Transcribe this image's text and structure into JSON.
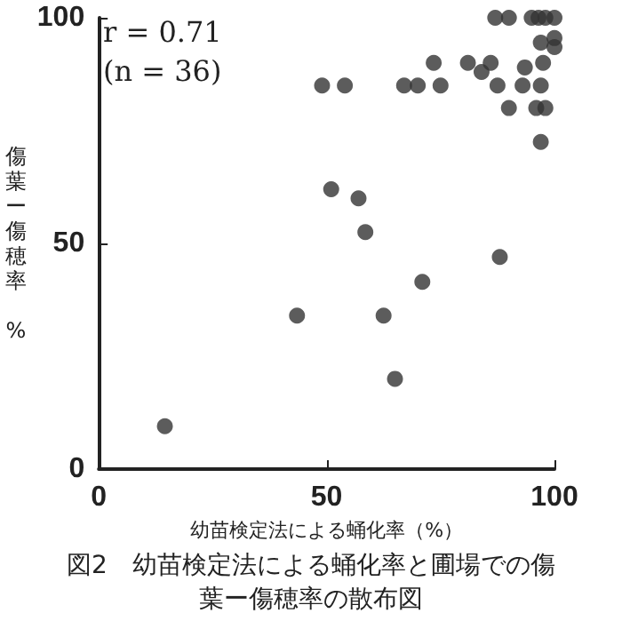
{
  "chart_data": {
    "type": "scatter",
    "title": "図2　幼苗検定法による蛹化率と圃場での傷葉ー傷穂率の散布図",
    "xlabel": "幼苗検定法による蛹化率（%）",
    "ylabel": "傷葉ー傷穂率 %",
    "annotations": [
      "r = 0.71",
      "(n = 36)"
    ],
    "x": [
      49,
      54,
      67,
      70,
      75,
      73.5,
      81,
      84,
      86,
      87.5,
      87,
      90,
      95,
      96.5,
      98,
      100,
      97,
      100,
      100,
      93.5,
      97.5,
      93,
      97,
      90,
      96,
      98,
      97,
      51,
      57,
      58.5,
      88,
      14.5,
      43.5,
      62.5,
      65,
      71
    ],
    "series": [
      {
        "color": "#333333",
        "values": [
          85,
          85,
          85,
          85,
          85,
          90,
          90,
          88,
          90,
          85,
          100,
          100,
          100,
          100,
          100,
          100,
          94.5,
          95.5,
          93.5,
          89,
          90,
          85,
          85,
          80,
          80,
          80,
          72.5,
          62,
          60,
          52.5,
          47,
          9.5,
          34,
          34,
          20,
          41.5
        ]
      }
    ],
    "xlim": [
      0,
      100
    ],
    "xticks": [
      0,
      50,
      100
    ],
    "ylim": [
      0,
      100
    ],
    "yticks": [
      0,
      50,
      100
    ],
    "marker": "circle",
    "grid": false
  }
}
